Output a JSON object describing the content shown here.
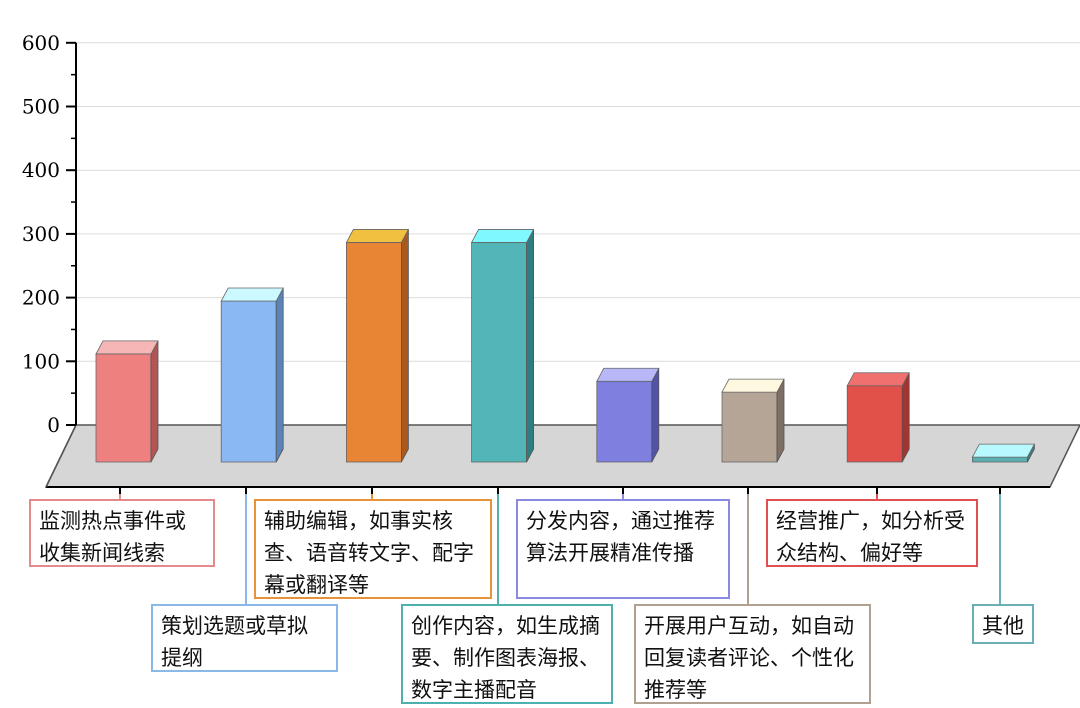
{
  "chart_data": {
    "type": "bar",
    "categories": [
      "监测热点事件或收集新闻线索",
      "策划选题或草拟提纲",
      "辅助编辑，如事实核查、语音转文字、配字幕或翻译等",
      "创作内容，如生成摘要、制作图表海报、数字主播配音",
      "分发内容，通过推荐算法开展精准传播",
      "开展用户互动，如自动回复读者评论、个性化推荐等",
      "经营推广，如分析受众结构、偏好等",
      "其他"
    ],
    "values": [
      165,
      248,
      340,
      340,
      122,
      105,
      115,
      3
    ],
    "ylim": [
      0,
      600
    ],
    "yticks": [
      "0",
      "100",
      "200",
      "300",
      "400",
      "500",
      "600"
    ],
    "grid": true,
    "title": "",
    "xlabel": "",
    "ylabel": "",
    "colors": [
      {
        "front": "#ef8080",
        "side": "#b35555",
        "top": "#f6b6b6",
        "border": "#e58a8a"
      },
      {
        "front": "#8ab8f2",
        "side": "#5a83b8",
        "top": "#ccf8ff",
        "border": "#8ab8e8"
      },
      {
        "front": "#e88535",
        "side": "#a85a1e",
        "top": "#f2c040",
        "border": "#e8923a"
      },
      {
        "front": "#52b5b8",
        "side": "#2f7d80",
        "top": "#7ff8ff",
        "border": "#4fb0b0"
      },
      {
        "front": "#7f7fe0",
        "side": "#5252a6",
        "top": "#b8b8f8",
        "border": "#8a8ae0"
      },
      {
        "front": "#b5a596",
        "side": "#7d6f63",
        "top": "#fff8e0",
        "border": "#b0a090"
      },
      {
        "front": "#e2504a",
        "side": "#a33430",
        "top": "#f07070",
        "border": "#e05050"
      },
      {
        "front": "#5ab0b0",
        "side": "#3a8080",
        "top": "#b8f8ff",
        "border": "#6aaeb8"
      }
    ]
  }
}
